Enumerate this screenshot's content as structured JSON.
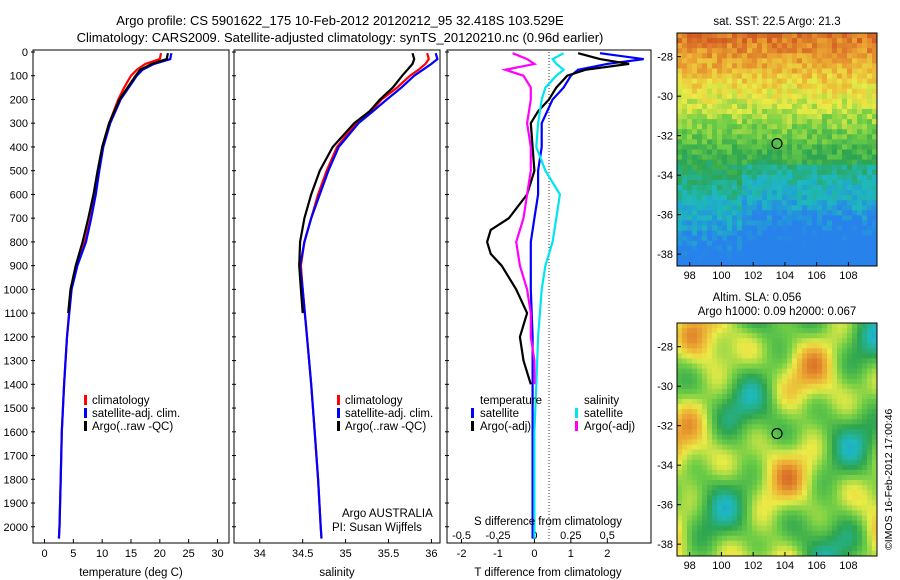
{
  "header": {
    "line1": "Argo profile: CS 5901622_175 10-Feb-2012 20120212_95 32.418S 103.529E",
    "line2": "Climatology: CARS2009. Satellite-adjusted climatology: synTS_20120210.nc (0.96d earlier)"
  },
  "colors": {
    "climatology": "#ff0000",
    "satellite": "#0000ff",
    "argo": "#000000",
    "sat_salinity": "#00e5ee",
    "argo_salinity": "#ff00ff"
  },
  "chart_data": [
    {
      "id": "temperature",
      "type": "line",
      "xlabel": "temperature (deg C)",
      "xlim": [
        -2,
        32
      ],
      "ylim": [
        2060,
        0
      ],
      "xticks": [
        "0",
        "5",
        "10",
        "15",
        "20",
        "25",
        "30"
      ],
      "yticks": [
        "0",
        "100",
        "200",
        "300",
        "400",
        "500",
        "600",
        "700",
        "800",
        "900",
        "1000",
        "1100",
        "1200",
        "1300",
        "1400",
        "1500",
        "1600",
        "1700",
        "1800",
        "1900",
        "2000"
      ],
      "legend": [
        "climatology",
        "satellite-adj. clim.",
        "Argo(..raw -QC)"
      ],
      "series": [
        {
          "name": "climatology",
          "depth": [
            5,
            30,
            50,
            75,
            100,
            150,
            200,
            300,
            400,
            500,
            600,
            700,
            800,
            900,
            1000,
            1200,
            1400,
            1600,
            1800,
            2000,
            2050
          ],
          "values": [
            20.2,
            20.0,
            17.5,
            16.0,
            15.0,
            13.8,
            12.8,
            11.2,
            10.0,
            9.4,
            8.8,
            8.0,
            7.0,
            5.6,
            4.6,
            3.9,
            3.4,
            3.0,
            2.8,
            2.6,
            2.5
          ]
        },
        {
          "name": "satellite-adj. clim.",
          "depth": [
            5,
            30,
            50,
            75,
            100,
            150,
            200,
            300,
            400,
            500,
            600,
            700,
            800,
            900,
            1000,
            1200,
            1400,
            1600,
            1800,
            2000,
            2050
          ],
          "values": [
            22.0,
            21.8,
            19.0,
            17.0,
            16.0,
            14.6,
            13.2,
            11.4,
            10.2,
            9.5,
            8.9,
            8.1,
            7.2,
            5.7,
            4.7,
            3.9,
            3.4,
            3.0,
            2.8,
            2.6,
            2.5
          ]
        },
        {
          "name": "Argo(..raw -QC)",
          "depth": [
            5,
            30,
            50,
            75,
            100,
            150,
            200,
            300,
            400,
            500,
            600,
            700,
            800,
            900,
            1000,
            1100
          ],
          "values": [
            21.4,
            21.2,
            18.6,
            16.6,
            15.8,
            14.4,
            13.0,
            11.2,
            10.0,
            9.2,
            8.5,
            7.6,
            6.6,
            5.4,
            4.5,
            4.1
          ]
        }
      ]
    },
    {
      "id": "salinity",
      "type": "line",
      "xlabel": "salinity",
      "xlim": [
        33.7,
        36.1
      ],
      "ylim": [
        2060,
        0
      ],
      "xticks": [
        "34",
        "34.5",
        "35",
        "35.5",
        "36"
      ],
      "legend": [
        "climatology",
        "satellite-adj. clim.",
        "Argo(..raw -QC)"
      ],
      "annotation": [
        "Argo AUSTRALIA",
        "PI: Susan Wijffels"
      ],
      "series": [
        {
          "name": "climatology",
          "depth": [
            5,
            30,
            50,
            75,
            100,
            150,
            200,
            250,
            300,
            400,
            500,
            600,
            700,
            800,
            900,
            1000,
            1200,
            1400,
            1600,
            1800,
            2000,
            2050
          ],
          "values": [
            35.95,
            35.97,
            35.93,
            35.85,
            35.75,
            35.6,
            35.42,
            35.3,
            35.12,
            34.9,
            34.78,
            34.68,
            34.6,
            34.52,
            34.48,
            34.5,
            34.55,
            34.6,
            34.64,
            34.68,
            34.71,
            34.72
          ]
        },
        {
          "name": "satellite-adj. clim.",
          "depth": [
            5,
            30,
            50,
            75,
            100,
            150,
            200,
            250,
            300,
            400,
            500,
            600,
            700,
            800,
            900,
            1000,
            1200,
            1400,
            1600,
            1800,
            2000,
            2050
          ],
          "values": [
            36.05,
            36.07,
            36.0,
            35.9,
            35.8,
            35.65,
            35.48,
            35.32,
            35.15,
            34.92,
            34.8,
            34.7,
            34.6,
            34.52,
            34.47,
            34.5,
            34.55,
            34.6,
            34.64,
            34.68,
            34.71,
            34.72
          ]
        },
        {
          "name": "Argo(..raw -QC)",
          "depth": [
            5,
            30,
            50,
            75,
            100,
            150,
            200,
            250,
            300,
            400,
            500,
            600,
            700,
            800,
            900,
            1000,
            1100
          ],
          "values": [
            35.78,
            35.8,
            35.78,
            35.72,
            35.66,
            35.55,
            35.4,
            35.28,
            35.1,
            34.85,
            34.7,
            34.6,
            34.52,
            34.47,
            34.46,
            34.48,
            34.5
          ]
        }
      ]
    },
    {
      "id": "differences",
      "type": "line",
      "xlabel_top": "S difference from climatology",
      "xlabel": "T difference from climatology",
      "xlim": [
        -2.4,
        3.2
      ],
      "ylim": [
        2060,
        0
      ],
      "xticks": [
        "-2",
        "-1",
        "0",
        "1",
        "2"
      ],
      "sticks": [
        "-0.5",
        "-0.25",
        "0",
        "0.25",
        "0.5"
      ],
      "legend_headers": [
        "temperature",
        "salinity"
      ],
      "legend": [
        "satellite",
        "Argo(-adj)",
        "satellite",
        "Argo(-adj)"
      ],
      "series": [
        {
          "name": "satellite",
          "depth": [
            5,
            30,
            50,
            75,
            100,
            150,
            200,
            300,
            400,
            500,
            600,
            700,
            800,
            900,
            1000,
            1200,
            1400,
            1600,
            1800,
            2000,
            2050
          ],
          "values": [
            1.8,
            3.0,
            2.0,
            1.2,
            1.0,
            0.8,
            0.5,
            0.2,
            0.2,
            0.1,
            0.1,
            0.0,
            -0.1,
            -0.1,
            -0.1,
            -0.05,
            -0.05,
            -0.05,
            -0.05,
            -0.05,
            -0.05
          ]
        },
        {
          "name": "Argo(-adj)",
          "depth": [
            5,
            30,
            50,
            75,
            100,
            150,
            200,
            250,
            300,
            400,
            500,
            600,
            700,
            750,
            800,
            850,
            900,
            1000,
            1100,
            1200,
            1300,
            1400
          ],
          "values": [
            1.2,
            1.8,
            2.6,
            1.4,
            0.9,
            0.6,
            0.4,
            0.1,
            -0.1,
            -0.05,
            0.0,
            -0.2,
            -0.7,
            -1.2,
            -1.3,
            -1.2,
            -0.9,
            -0.5,
            -0.2,
            -0.4,
            -0.3,
            -0.1
          ]
        },
        {
          "name": "satellite",
          "depth": [
            5,
            30,
            50,
            75,
            100,
            150,
            200,
            300,
            400,
            500,
            600,
            700,
            800,
            900,
            1000,
            1200,
            1400,
            1600,
            1800,
            2000,
            2050
          ],
          "values": [
            0.8,
            0.5,
            0.6,
            0.8,
            0.6,
            0.3,
            0.2,
            0.1,
            0.05,
            0.3,
            0.7,
            0.6,
            0.5,
            0.3,
            0.2,
            0.1,
            0.05,
            0.0,
            0.0,
            0.0,
            0.0
          ]
        },
        {
          "name": "Argo(-adj)",
          "depth": [
            5,
            30,
            50,
            75,
            100,
            150,
            200,
            300,
            400,
            500,
            600,
            700,
            800,
            900,
            1000,
            1100,
            1200,
            1300,
            1400
          ],
          "values": [
            -0.6,
            -0.2,
            0.0,
            -0.8,
            -0.3,
            -0.1,
            -0.1,
            -0.2,
            -0.1,
            -0.1,
            -0.2,
            -0.3,
            -0.5,
            -0.4,
            -0.2,
            -0.1,
            -0.1,
            0.0,
            0.0
          ]
        }
      ]
    },
    {
      "id": "sst_map",
      "type": "heatmap",
      "title": "sat. SST: 22.5  Argo: 21.3",
      "xticks": [
        "98",
        "100",
        "102",
        "104",
        "106",
        "108"
      ],
      "yticks": [
        "-28",
        "-30",
        "-32",
        "-34",
        "-36",
        "-38"
      ],
      "marker": {
        "lon": 103.5,
        "lat": -32.4
      }
    },
    {
      "id": "sla_map",
      "type": "heatmap",
      "title": "Altim. SLA: 0.056",
      "subtitle": "Argo h1000: 0.09 h2000: 0.067",
      "xticks": [
        "98",
        "100",
        "102",
        "104",
        "106",
        "108"
      ],
      "yticks": [
        "-28",
        "-30",
        "-32",
        "-34",
        "-36",
        "-38"
      ],
      "marker": {
        "lon": 103.5,
        "lat": -32.4
      }
    }
  ],
  "stamp": "©IMOS 16-Feb-2012 17:00:46"
}
